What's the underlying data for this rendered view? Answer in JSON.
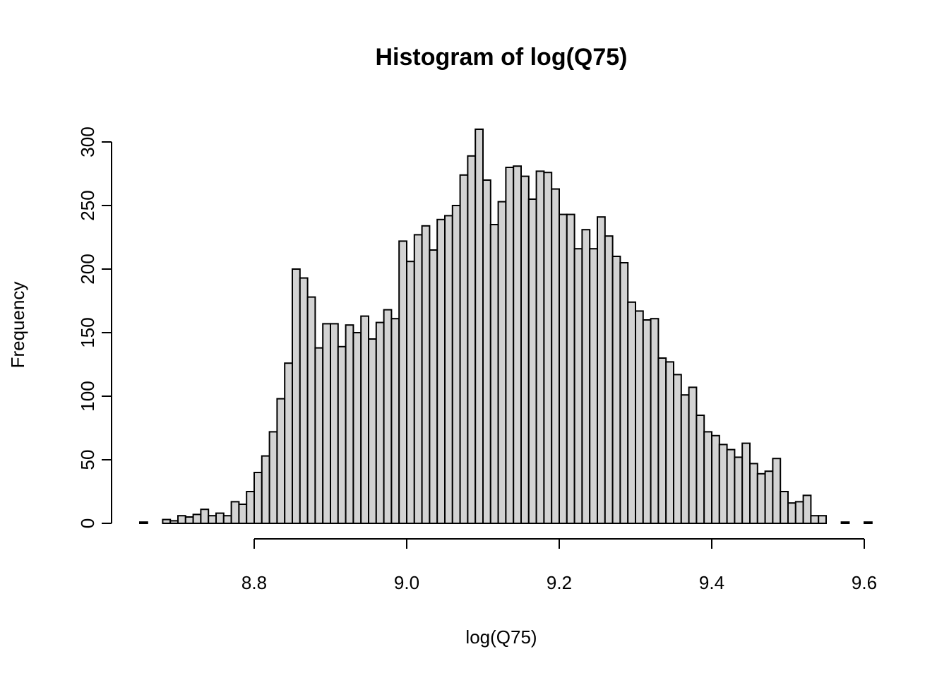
{
  "chart_data": {
    "type": "bar",
    "title": "Histogram of log(Q75)",
    "xlabel": "log(Q75)",
    "ylabel": "Frequency",
    "xlim": [
      8.65,
      9.6
    ],
    "ylim": [
      0,
      310
    ],
    "x_ticks": [
      8.8,
      9.0,
      9.2,
      9.4,
      9.6
    ],
    "x_tick_labels": [
      "8.8",
      "9.0",
      "9.2",
      "9.4",
      "9.6"
    ],
    "y_ticks": [
      0,
      50,
      100,
      150,
      200,
      250,
      300
    ],
    "y_tick_labels": [
      "0",
      "50",
      "100",
      "150",
      "200",
      "250",
      "300"
    ],
    "bin_start": 8.65,
    "bin_width": 0.01,
    "counts": [
      1,
      0,
      0,
      3,
      2,
      6,
      5,
      7,
      11,
      6,
      8,
      6,
      17,
      15,
      25,
      40,
      53,
      72,
      98,
      126,
      200,
      193,
      178,
      138,
      157,
      157,
      139,
      156,
      150,
      163,
      145,
      158,
      168,
      161,
      222,
      206,
      227,
      234,
      215,
      239,
      242,
      250,
      274,
      289,
      310,
      270,
      235,
      253,
      280,
      281,
      273,
      255,
      277,
      276,
      263,
      243,
      243,
      216,
      231,
      216,
      241,
      226,
      210,
      205,
      174,
      167,
      160,
      161,
      130,
      127,
      117,
      101,
      107,
      85,
      72,
      69,
      62,
      58,
      52,
      63,
      47,
      39,
      41,
      51,
      25,
      16,
      17,
      22,
      6,
      6,
      0,
      0,
      1,
      0,
      0,
      1
    ]
  }
}
